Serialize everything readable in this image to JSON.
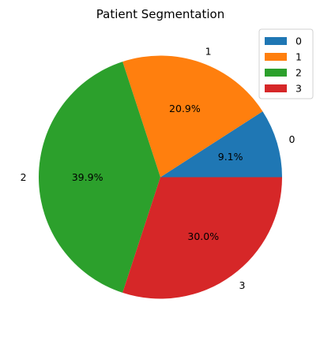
{
  "chart_data": {
    "type": "pie",
    "title": "Patient Segmentation",
    "labels": [
      "0",
      "1",
      "2",
      "3"
    ],
    "values": [
      9.1,
      20.9,
      39.9,
      30.0
    ],
    "percent_labels": [
      "9.1%",
      "20.9%",
      "39.9%",
      "30.0%"
    ],
    "colors": [
      "#1f77b4",
      "#ff7f0e",
      "#2ca02c",
      "#d62728"
    ],
    "start_angle_deg": 0,
    "direction": "counterclockwise",
    "legend": {
      "position": "top-right",
      "entries": [
        "0",
        "1",
        "2",
        "3"
      ]
    }
  }
}
